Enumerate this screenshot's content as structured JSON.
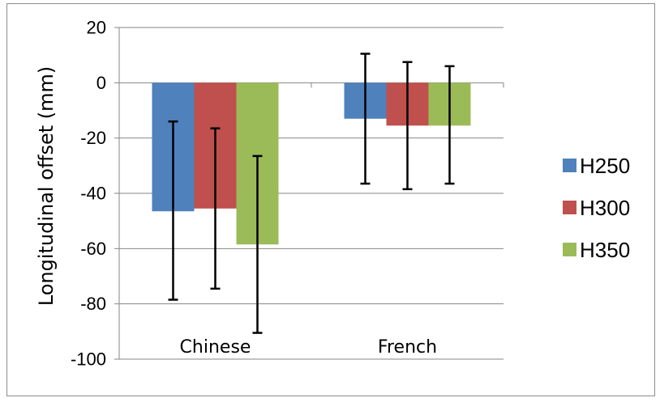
{
  "chart_data": {
    "type": "bar",
    "title": "",
    "xlabel": "",
    "ylabel": "Longitudinal offset (mm)",
    "ylim": [
      -100,
      20
    ],
    "yticks": [
      20,
      0,
      -20,
      -40,
      -60,
      -80,
      -100
    ],
    "grid": true,
    "legend_position": "right",
    "categories": [
      "Chinese",
      "French"
    ],
    "series": [
      {
        "name": "H250",
        "color": "#4f81bd",
        "values": [
          -46.5,
          -13
        ],
        "error_low": [
          -78.5,
          -36.5
        ],
        "error_high": [
          -14,
          10.5
        ]
      },
      {
        "name": "H300",
        "color": "#c0504d",
        "values": [
          -45.5,
          -15.5
        ],
        "error_low": [
          -74.5,
          -38.5
        ],
        "error_high": [
          -16.5,
          7.5
        ]
      },
      {
        "name": "H350",
        "color": "#9bbb59",
        "values": [
          -58.5,
          -15.5
        ],
        "error_low": [
          -90.5,
          -36.5
        ],
        "error_high": [
          -26.5,
          6
        ]
      }
    ]
  }
}
